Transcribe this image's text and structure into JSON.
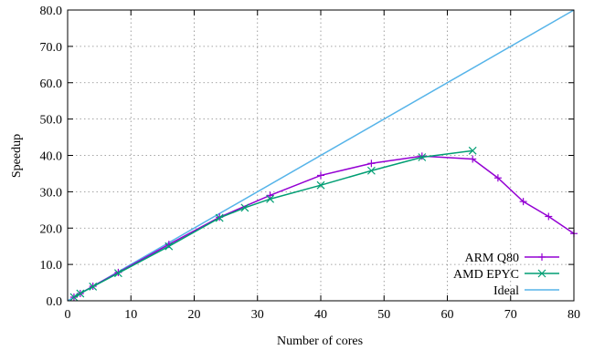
{
  "chart_data": {
    "type": "line",
    "xlabel": "Number of cores",
    "ylabel": "Speedup",
    "xlim": [
      0,
      80
    ],
    "ylim": [
      0,
      80
    ],
    "x_ticks": [
      "0",
      "10",
      "20",
      "30",
      "40",
      "50",
      "60",
      "70",
      "80"
    ],
    "y_ticks": [
      "0.0",
      "10.0",
      "20.0",
      "30.0",
      "40.0",
      "50.0",
      "60.0",
      "70.0",
      "80.0"
    ],
    "grid": true,
    "legend_position": "bottom-right",
    "series": [
      {
        "name": "ARM Q80",
        "color": "#9400d3",
        "marker": "plus",
        "x": [
          1,
          2,
          4,
          8,
          16,
          24,
          32,
          40,
          48,
          56,
          64,
          68,
          72,
          76,
          80
        ],
        "y": [
          1.0,
          2.0,
          4.0,
          7.8,
          15.5,
          23.0,
          29.0,
          34.5,
          37.8,
          39.8,
          39.0,
          33.8,
          27.3,
          23.2,
          18.5
        ]
      },
      {
        "name": "AMD EPYC",
        "color": "#009e73",
        "marker": "cross",
        "x": [
          1,
          2,
          4,
          8,
          16,
          24,
          28,
          32,
          40,
          48,
          56,
          64
        ],
        "y": [
          1.0,
          2.0,
          3.9,
          7.6,
          15.0,
          22.8,
          25.6,
          28.0,
          31.8,
          35.8,
          39.5,
          41.3
        ]
      },
      {
        "name": "Ideal",
        "color": "#56b4e9",
        "marker": "none",
        "x": [
          0,
          80
        ],
        "y": [
          0,
          80
        ]
      }
    ]
  }
}
